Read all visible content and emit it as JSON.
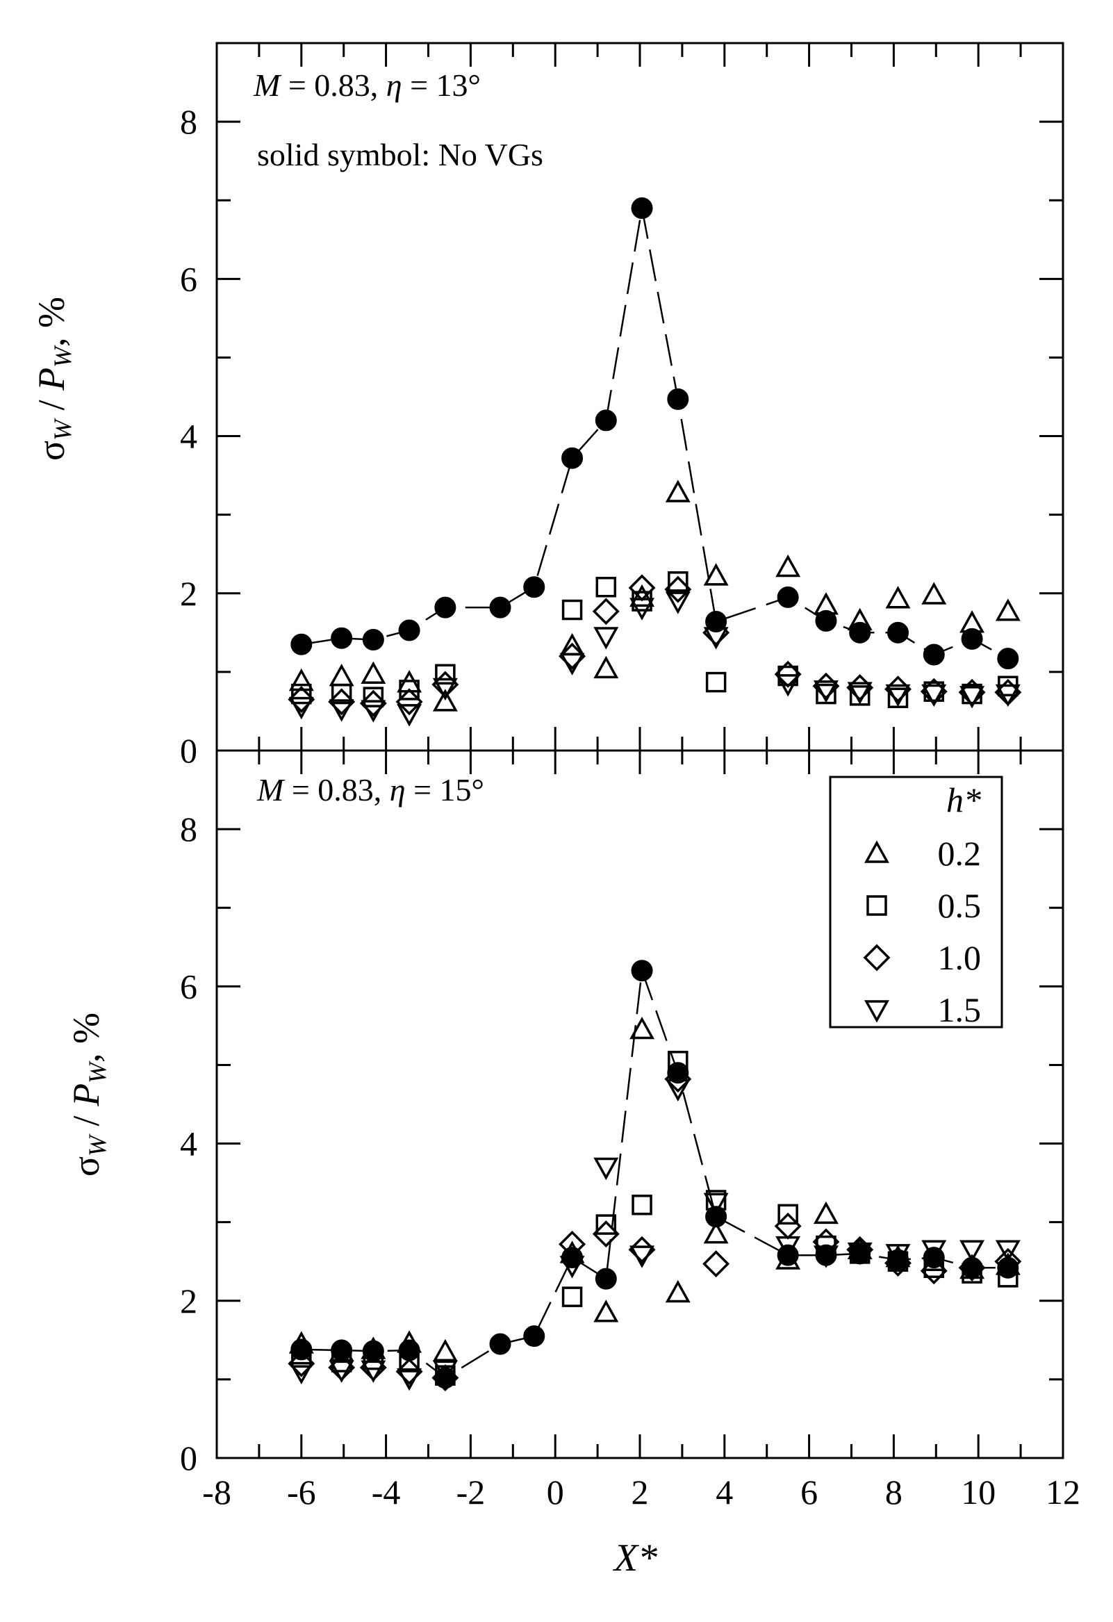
{
  "chart_data": [
    {
      "type": "scatter",
      "panel": "top",
      "annotations": {
        "condition_M": "M",
        "condition_eq1": " = 0.83,  ",
        "condition_eta": "η",
        "condition_eq2": " = 13°",
        "note": "solid symbol: No VGs"
      },
      "ylabel": {
        "sigma": "σ",
        "sub1": "W",
        "slash": " / ",
        "P": "P",
        "sub2": "W",
        "unit": ", %"
      },
      "xlim": [
        -8,
        12
      ],
      "ylim": [
        0,
        9
      ],
      "xticks": [
        -8,
        -6,
        -4,
        -2,
        0,
        2,
        4,
        6,
        8,
        10,
        12
      ],
      "yticks": [
        0,
        2,
        4,
        6,
        8
      ],
      "series": [
        {
          "name": "No VGs",
          "marker": "filled-circle",
          "line": "dashed",
          "x": [
            -6.0,
            -5.05,
            -4.3,
            -3.45,
            -2.6,
            -1.3,
            -0.5,
            0.4,
            1.2,
            2.05,
            2.9,
            3.8,
            5.5,
            6.4,
            7.2,
            8.1,
            8.95,
            9.85,
            10.7
          ],
          "y": [
            1.35,
            1.43,
            1.41,
            1.53,
            1.82,
            1.82,
            2.08,
            3.72,
            4.2,
            6.9,
            4.47,
            1.64,
            1.95,
            1.65,
            1.5,
            1.5,
            1.22,
            1.42,
            1.17
          ]
        },
        {
          "name": "0.2",
          "marker": "triangle-up",
          "x": [
            -6.0,
            -5.05,
            -4.3,
            -3.45,
            -2.6,
            0.4,
            1.2,
            2.05,
            2.9,
            3.8,
            5.5,
            6.4,
            7.2,
            8.1,
            8.95,
            9.85,
            10.7
          ],
          "y": [
            0.88,
            0.94,
            0.97,
            0.86,
            0.62,
            1.33,
            1.04,
            1.95,
            3.28,
            2.22,
            2.33,
            1.85,
            1.65,
            1.93,
            1.98,
            1.62,
            1.77
          ]
        },
        {
          "name": "0.5",
          "marker": "square",
          "x": [
            -6.0,
            -5.05,
            -4.3,
            -3.45,
            -2.6,
            0.4,
            1.2,
            2.05,
            2.9,
            3.8,
            5.5,
            6.4,
            7.2,
            8.1,
            8.95,
            9.85,
            10.7
          ],
          "y": [
            0.72,
            0.72,
            0.68,
            0.77,
            0.97,
            1.79,
            2.08,
            1.9,
            2.15,
            0.87,
            0.95,
            0.72,
            0.7,
            0.67,
            0.75,
            0.72,
            0.82
          ]
        },
        {
          "name": "1.0",
          "marker": "diamond",
          "x": [
            -6.0,
            -5.05,
            -4.3,
            -3.45,
            -2.6,
            0.4,
            1.2,
            2.05,
            2.9,
            3.8,
            5.5,
            6.4,
            7.2,
            8.1,
            8.95,
            9.85,
            10.7
          ],
          "y": [
            0.65,
            0.62,
            0.6,
            0.62,
            0.84,
            1.2,
            1.77,
            2.07,
            2.05,
            1.5,
            0.97,
            0.82,
            0.8,
            0.78,
            0.75,
            0.74,
            0.74
          ]
        },
        {
          "name": "1.5",
          "marker": "triangle-down",
          "x": [
            -6.0,
            -5.05,
            -4.3,
            -3.45,
            -2.6,
            0.4,
            1.2,
            2.05,
            2.9,
            3.8,
            5.5,
            6.4,
            7.2,
            8.1,
            8.95,
            9.85,
            10.7
          ],
          "y": [
            0.56,
            0.53,
            0.52,
            0.47,
            0.8,
            1.12,
            1.45,
            1.82,
            1.9,
            1.45,
            0.85,
            0.77,
            0.75,
            0.72,
            0.72,
            0.7,
            0.72
          ]
        }
      ]
    },
    {
      "type": "scatter",
      "panel": "bottom",
      "annotations": {
        "condition_M": "M",
        "condition_eq1": " = 0.83,  ",
        "condition_eta": "η",
        "condition_eq2": " = 15°"
      },
      "ylabel": {
        "sigma": "σ",
        "sub1": "W",
        "slash": " / ",
        "P": "P",
        "sub2": "W",
        "unit": ", %"
      },
      "xlabel": "X*",
      "xlim": [
        -8,
        12
      ],
      "ylim": [
        0,
        9
      ],
      "xticks": [
        -8,
        -6,
        -4,
        -2,
        0,
        2,
        4,
        6,
        8,
        10,
        12
      ],
      "yticks": [
        0,
        2,
        4,
        6,
        8
      ],
      "legend": {
        "title": "h*",
        "placement": "top-right",
        "entries": [
          "0.2",
          "0.5",
          "1.0",
          "1.5"
        ]
      },
      "series": [
        {
          "name": "No VGs",
          "marker": "filled-circle",
          "line": "dashed",
          "x": [
            -6.0,
            -5.05,
            -4.3,
            -3.45,
            -2.6,
            -1.3,
            -0.5,
            0.4,
            1.2,
            2.05,
            2.9,
            3.8,
            5.5,
            6.4,
            7.2,
            8.1,
            8.95,
            9.85,
            10.7
          ],
          "y": [
            1.38,
            1.37,
            1.36,
            1.37,
            1.02,
            1.45,
            1.55,
            2.55,
            2.28,
            6.2,
            4.9,
            3.07,
            2.58,
            2.58,
            2.6,
            2.52,
            2.55,
            2.42,
            2.42
          ]
        },
        {
          "name": "0.2",
          "marker": "triangle-up",
          "x": [
            -6.0,
            -5.05,
            -4.3,
            -3.45,
            -2.6,
            0.4,
            1.2,
            2.05,
            2.9,
            3.8,
            5.5,
            6.4,
            7.2,
            8.1,
            8.95,
            9.85,
            10.7
          ],
          "y": [
            1.45,
            1.35,
            1.38,
            1.46,
            1.35,
            2.6,
            1.85,
            5.45,
            2.1,
            2.85,
            2.52,
            3.1,
            2.65,
            2.55,
            2.5,
            2.4,
            2.45
          ]
        },
        {
          "name": "0.5",
          "marker": "square",
          "x": [
            -6.0,
            -5.05,
            -4.3,
            -3.45,
            -2.6,
            0.4,
            1.2,
            2.05,
            2.9,
            3.8,
            5.5,
            6.4,
            7.2,
            8.1,
            8.95,
            9.85,
            10.7
          ],
          "y": [
            1.28,
            1.22,
            1.25,
            1.22,
            1.05,
            2.05,
            2.97,
            3.22,
            5.05,
            3.28,
            3.1,
            2.7,
            2.6,
            2.5,
            2.42,
            2.35,
            2.3
          ]
        },
        {
          "name": "1.0",
          "marker": "diamond",
          "x": [
            -6.0,
            -5.05,
            -4.3,
            -3.45,
            -2.6,
            0.4,
            1.2,
            2.05,
            2.9,
            3.8,
            5.5,
            6.4,
            7.2,
            8.1,
            8.95,
            9.85,
            10.7
          ],
          "y": [
            1.2,
            1.15,
            1.15,
            1.1,
            1.02,
            2.72,
            2.85,
            2.65,
            4.82,
            2.47,
            2.95,
            2.75,
            2.65,
            2.48,
            2.38,
            2.42,
            2.5
          ]
        },
        {
          "name": "1.5",
          "marker": "triangle-down",
          "x": [
            -6.0,
            -5.05,
            -4.3,
            -3.45,
            -2.6,
            0.4,
            1.2,
            2.05,
            2.9,
            3.8,
            5.5,
            6.4,
            7.2,
            8.1,
            8.95,
            9.85,
            10.7
          ],
          "y": [
            1.1,
            1.12,
            1.12,
            1.02,
            1.12,
            2.45,
            3.7,
            2.58,
            4.7,
            3.25,
            2.7,
            2.58,
            2.62,
            2.6,
            2.65,
            2.65,
            2.65
          ]
        }
      ]
    }
  ]
}
